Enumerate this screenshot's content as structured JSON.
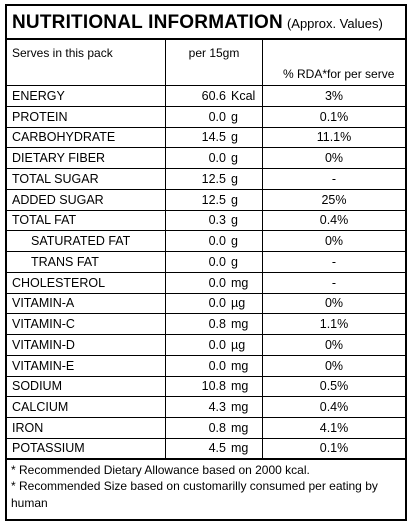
{
  "title": "NUTRITIONAL INFORMATION",
  "subtitle": "(Approx. Values)",
  "header": {
    "serves": "Serves in this pack",
    "per": "per 15gm",
    "rda": "% RDA*for per serve"
  },
  "rows": [
    {
      "name": "ENERGY",
      "value": "60.6",
      "unit": "Kcal",
      "rda": "3%"
    },
    {
      "name": "PROTEIN",
      "value": "0.0",
      "unit": "g",
      "rda": "0.1%"
    },
    {
      "name": "CARBOHYDRATE",
      "value": "14.5",
      "unit": "g",
      "rda": "11.1%"
    },
    {
      "name": "DIETARY FIBER",
      "value": "0.0",
      "unit": "g",
      "rda": "0%"
    },
    {
      "name": "TOTAL SUGAR",
      "value": "12.5",
      "unit": "g",
      "rda": "-"
    },
    {
      "name": "ADDED SUGAR",
      "value": "12.5",
      "unit": "g",
      "rda": "25%"
    },
    {
      "name": "TOTAL FAT",
      "value": "0.3",
      "unit": "g",
      "rda": "0.4%"
    },
    {
      "name": "SATURATED FAT",
      "value": "0.0",
      "unit": "g",
      "rda": "0%"
    },
    {
      "name": "TRANS FAT",
      "value": "0.0",
      "unit": "g",
      "rda": "-"
    },
    {
      "name": "CHOLESTEROL",
      "value": "0.0",
      "unit": "mg",
      "rda": "-"
    },
    {
      "name": "VITAMIN-A",
      "value": "0.0",
      "unit": "µg",
      "rda": "0%"
    },
    {
      "name": "VITAMIN-C",
      "value": "0.8",
      "unit": "mg",
      "rda": "1.1%"
    },
    {
      "name": "VITAMIN-D",
      "value": "0.0",
      "unit": "µg",
      "rda": "0%"
    },
    {
      "name": "VITAMIN-E",
      "value": "0.0",
      "unit": "mg",
      "rda": "0%"
    },
    {
      "name": "SODIUM",
      "value": "10.8",
      "unit": "mg",
      "rda": "0.5%"
    },
    {
      "name": "CALCIUM",
      "value": "4.3",
      "unit": "mg",
      "rda": "0.4%"
    },
    {
      "name": "IRON",
      "value": "0.8",
      "unit": "mg",
      "rda": "4.1%"
    },
    {
      "name": "POTASSIUM",
      "value": "4.5",
      "unit": "mg",
      "rda": "0.1%"
    }
  ],
  "footnotes": [
    "* Recommended  Dietary Allowance based on 2000 kcal.",
    "* Recommended Size based on customarilly consumed per eating by human"
  ]
}
